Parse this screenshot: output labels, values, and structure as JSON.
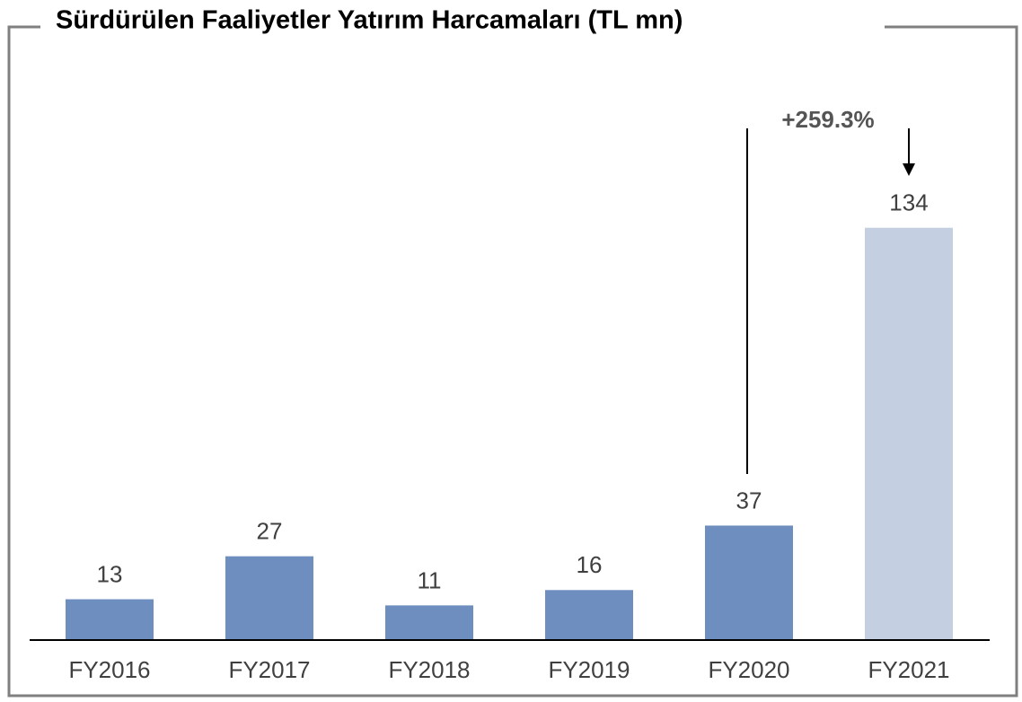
{
  "chart_data": {
    "type": "bar",
    "title": "Sürdürülen Faaliyetler Yatırım Harcamaları (TL mn)",
    "categories": [
      "FY2016",
      "FY2017",
      "FY2018",
      "FY2019",
      "FY2020",
      "FY2021"
    ],
    "values": [
      13,
      27,
      11,
      16,
      37,
      134
    ],
    "colors": [
      "#6d8ebf",
      "#6d8ebf",
      "#6d8ebf",
      "#6d8ebf",
      "#6d8ebf",
      "#c5cfe2"
    ],
    "annotation": "+259.3%"
  }
}
